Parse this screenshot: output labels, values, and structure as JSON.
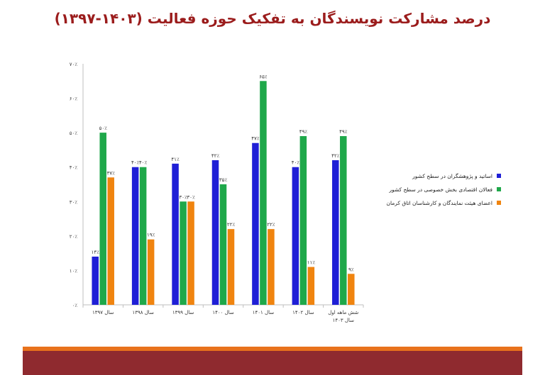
{
  "title": "درصد مشارکت نویسندگان به تفکیک حوزه فعالیت (۱۴۰۳-۱۳۹۷)",
  "chart_data": {
    "type": "bar",
    "title": "درصد مشارکت نویسندگان به تفکیک حوزه فعالیت (۱۴۰۳-۱۳۹۷)",
    "categories": [
      "سال ۱۳۹۷",
      "سال ۱۳۹۸",
      "سال ۱۳۹۹",
      "سال ۱۴۰۰",
      "سال ۱۴۰۱",
      "سال ۱۴۰۲",
      "شش ماهه اول سال ۱۴۰۳"
    ],
    "ylim": [
      0,
      70
    ],
    "ytick_values": [
      0,
      10,
      20,
      30,
      40,
      50,
      60,
      70
    ],
    "ytick_labels": [
      "۰٪",
      "۱۰٪",
      "۲۰٪",
      "۳۰٪",
      "۴۰٪",
      "۵۰٪",
      "۶۰٪",
      "۷۰٪"
    ],
    "grid": false,
    "legend_position": "right",
    "series": [
      {
        "name": "اساتید و پژوهشگران در سطح کشور",
        "color": "#1f1fd6",
        "values": [
          14,
          40,
          41,
          42,
          47,
          40,
          42
        ],
        "labels": [
          "۱۴٪",
          "۴۰٪",
          "۴۱٪",
          "۴۲٪",
          "۴۷٪",
          "۴۰٪",
          "۴۲٪"
        ]
      },
      {
        "name": "فعالان اقتصادی بخش خصوصی در سطح کشور",
        "color": "#1fa84a",
        "values": [
          50,
          40,
          30,
          35,
          65,
          49,
          49
        ],
        "labels": [
          "۵۰٪",
          "۴۰٪",
          "۳۰٪",
          "۳۵٪",
          "۶۵٪",
          "۴۹٪",
          "۴۹٪"
        ]
      },
      {
        "name": "اعضای هیئت نمایندگان و کارشناسان اتاق کرمان",
        "color": "#f0840f",
        "values": [
          37,
          19,
          30,
          22,
          22,
          11,
          9
        ],
        "labels": [
          "۳۷٪",
          "۱۹٪",
          "۳۰٪",
          "۲۲٪",
          "۲۲٪",
          "۱۱٪",
          "۹٪"
        ]
      }
    ]
  }
}
